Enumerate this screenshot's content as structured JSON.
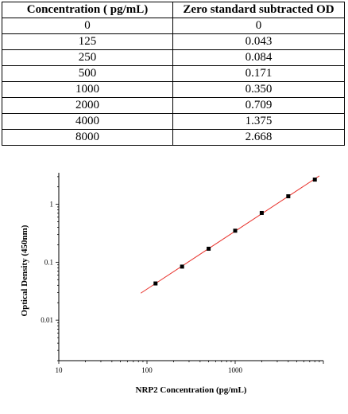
{
  "table": {
    "headers": [
      "Concentration ( pg/mL)",
      "Zero standard subtracted OD"
    ],
    "rows": [
      [
        "0",
        "0"
      ],
      [
        "125",
        "0.043"
      ],
      [
        "250",
        "0.084"
      ],
      [
        "500",
        "0.171"
      ],
      [
        "1000",
        "0.350"
      ],
      [
        "2000",
        "0.709"
      ],
      [
        "4000",
        "1.375"
      ],
      [
        "8000",
        "2.668"
      ]
    ]
  },
  "chart_data": {
    "type": "scatter",
    "title": "",
    "xlabel": "NRP2 Concentration (pg/mL)",
    "ylabel": "Optical Density (450nm)",
    "xscale": "log",
    "yscale": "log",
    "xlim": [
      10,
      10000
    ],
    "ylim": [
      0.002,
      3.5
    ],
    "x_ticks": [
      "10",
      "100",
      "1000"
    ],
    "y_ticks": [
      "0.01",
      "0.1",
      "1"
    ],
    "grid": false,
    "series": [
      {
        "x": [
          125,
          250,
          500,
          1000,
          2000,
          4000,
          8000
        ],
        "y": [
          0.043,
          0.084,
          0.171,
          0.35,
          0.709,
          1.375,
          2.668
        ],
        "marker": "square",
        "color": "#000000"
      }
    ],
    "fit_line": {
      "type": "log-log linear",
      "color": "#e8302a",
      "x_range": [
        85,
        9000
      ]
    }
  }
}
